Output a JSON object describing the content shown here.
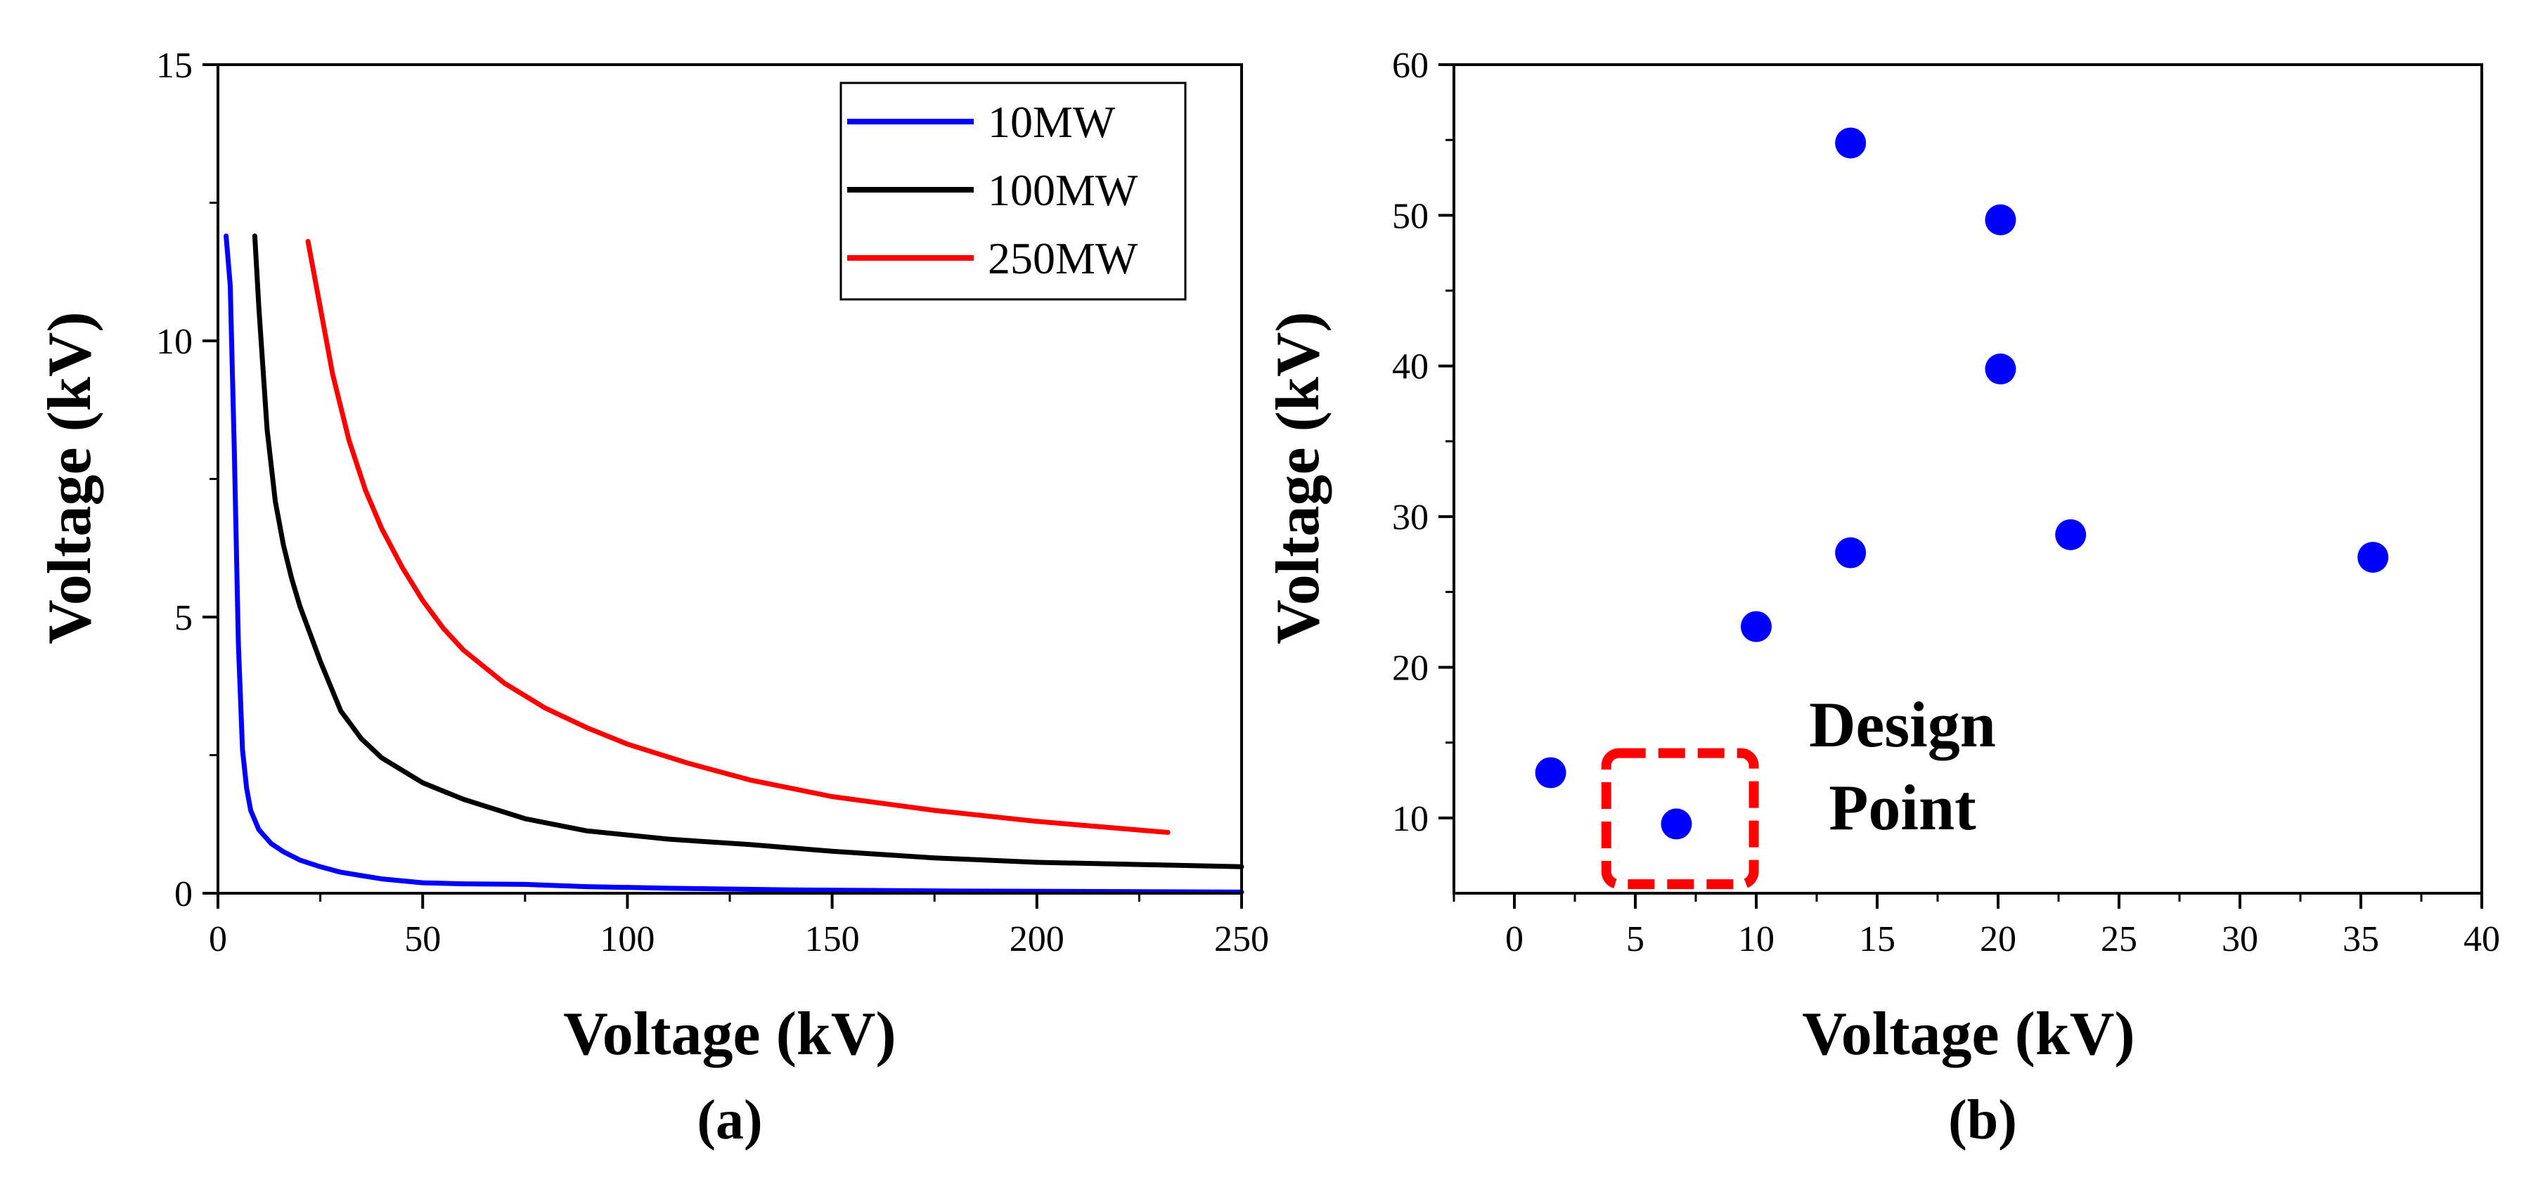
{
  "chart_data": [
    {
      "type": "line",
      "panel_label": "(a)",
      "xlabel": "Voltage (kV)",
      "ylabel": "Voltage (kV)",
      "xlim": [
        0,
        250
      ],
      "ylim": [
        0,
        15
      ],
      "xticks": [
        0,
        50,
        100,
        150,
        200,
        250
      ],
      "yticks": [
        0,
        5,
        10,
        15
      ],
      "legend_position": "top-right",
      "series": [
        {
          "name": "10MW",
          "color": "#0000ff",
          "x": [
            2,
            3,
            4,
            5,
            6,
            7,
            8,
            10,
            13,
            16,
            20,
            25,
            30,
            40,
            50,
            60,
            75,
            90,
            110,
            140,
            180,
            220,
            250
          ],
          "y": [
            11.9,
            11.0,
            8.0,
            4.5,
            2.6,
            1.9,
            1.5,
            1.15,
            0.9,
            0.75,
            0.6,
            0.48,
            0.38,
            0.26,
            0.19,
            0.17,
            0.16,
            0.12,
            0.09,
            0.06,
            0.04,
            0.03,
            0.02
          ]
        },
        {
          "name": "100MW",
          "color": "#000000",
          "x": [
            9,
            10,
            12,
            14,
            16,
            18,
            20,
            25,
            30,
            35,
            40,
            50,
            60,
            75,
            90,
            110,
            130,
            150,
            175,
            200,
            225,
            250
          ],
          "y": [
            11.9,
            10.6,
            8.4,
            7.1,
            6.3,
            5.7,
            5.2,
            4.2,
            3.3,
            2.8,
            2.45,
            2.0,
            1.7,
            1.35,
            1.13,
            0.98,
            0.88,
            0.76,
            0.64,
            0.56,
            0.52,
            0.48
          ]
        },
        {
          "name": "250MW",
          "color": "#ff0000",
          "x": [
            22,
            25,
            28,
            32,
            36,
            40,
            45,
            50,
            55,
            60,
            70,
            80,
            90,
            100,
            115,
            130,
            150,
            175,
            200,
            232
          ],
          "y": [
            11.8,
            10.6,
            9.4,
            8.2,
            7.3,
            6.6,
            5.9,
            5.3,
            4.8,
            4.4,
            3.8,
            3.35,
            3.0,
            2.7,
            2.35,
            2.05,
            1.75,
            1.5,
            1.3,
            1.1
          ]
        }
      ]
    },
    {
      "type": "scatter",
      "panel_label": "(b)",
      "xlabel": "Voltage (kV)",
      "ylabel": "Voltage (kV)",
      "xlim": [
        -2.5,
        40
      ],
      "ylim": [
        5,
        60
      ],
      "xticks": [
        0,
        5,
        10,
        15,
        20,
        25,
        30,
        35,
        40
      ],
      "yticks": [
        10,
        20,
        30,
        40,
        50,
        60
      ],
      "marker_color": "#0000ff",
      "points": [
        {
          "x": 1.5,
          "y": 13.0
        },
        {
          "x": 6.7,
          "y": 9.6
        },
        {
          "x": 10.0,
          "y": 22.7
        },
        {
          "x": 13.9,
          "y": 27.6
        },
        {
          "x": 13.9,
          "y": 54.8
        },
        {
          "x": 20.1,
          "y": 49.7
        },
        {
          "x": 20.1,
          "y": 39.8
        },
        {
          "x": 23.0,
          "y": 28.8
        },
        {
          "x": 35.5,
          "y": 27.3
        }
      ],
      "annotation": {
        "lines": [
          "Design",
          "Point"
        ],
        "color": "#ff0000",
        "box_x": [
          3.8,
          9.9
        ],
        "box_y": [
          5.6,
          14.3
        ]
      }
    }
  ]
}
